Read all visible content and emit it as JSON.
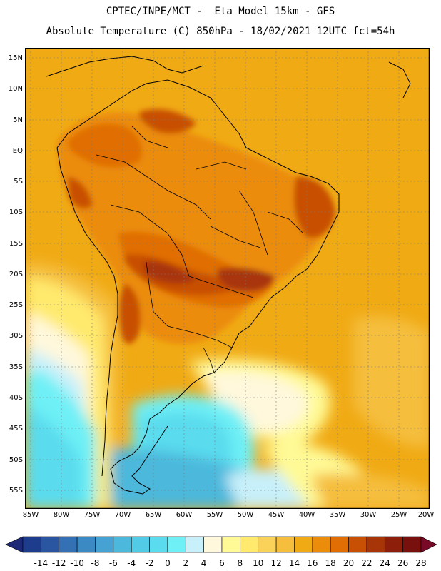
{
  "title": {
    "line1": "CPTEC/INPE/MCT -  Eta Model 15km - GFS",
    "line2": "Absolute Temperature (C) 850hPa - 18/02/2021 12UTC fct=54h"
  },
  "map": {
    "lat_labels": [
      "15N",
      "10N",
      "5N",
      "EQ",
      "5S",
      "10S",
      "15S",
      "20S",
      "25S",
      "30S",
      "35S",
      "40S",
      "45S",
      "50S",
      "55S"
    ],
    "lon_labels": [
      "85W",
      "80W",
      "75W",
      "70W",
      "65W",
      "60W",
      "55W",
      "50W",
      "45W",
      "40W",
      "35W",
      "30W",
      "25W",
      "20W"
    ]
  },
  "colorbar": {
    "labels": [
      "-14",
      "-12",
      "-10",
      "-8",
      "-6",
      "-4",
      "-2",
      "0",
      "2",
      "4",
      "6",
      "8",
      "10",
      "12",
      "14",
      "16",
      "18",
      "20",
      "22",
      "24",
      "26",
      "28"
    ],
    "colors": [
      "#1e3c8c",
      "#2a55a0",
      "#3471b4",
      "#3c8ac4",
      "#45a2d2",
      "#4cb8dc",
      "#52cce6",
      "#5adcee",
      "#6ef0f6",
      "#c8f0fa",
      "#fff8dc",
      "#fffa96",
      "#ffea6e",
      "#fad25a",
      "#f5be3c",
      "#f0aa14",
      "#eb8c0a",
      "#e06e05",
      "#c85005",
      "#a83508",
      "#8c1e0a",
      "#78100e"
    ],
    "arrow_left_color": "#1e2a78",
    "arrow_right_color": "#780a28"
  }
}
